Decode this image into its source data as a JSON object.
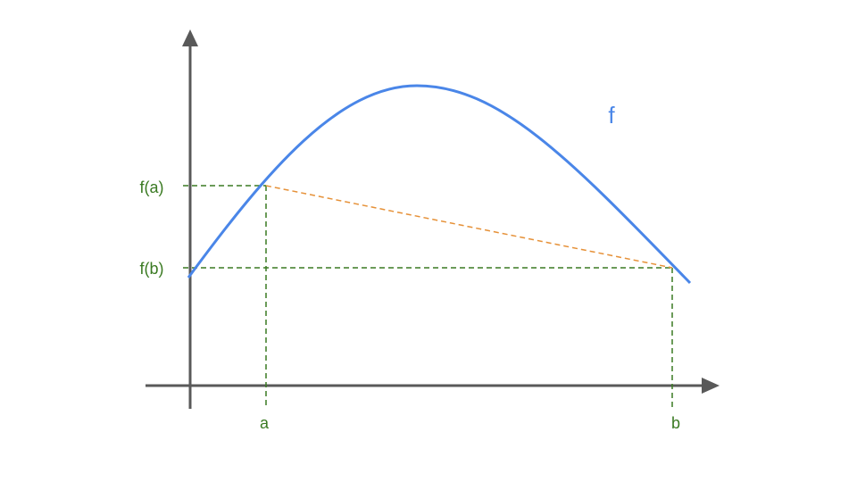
{
  "function_label": "f",
  "y_labels": {
    "fa": "f(a)",
    "fb": "f(b)"
  },
  "x_labels": {
    "a": "a",
    "b": "b"
  }
}
